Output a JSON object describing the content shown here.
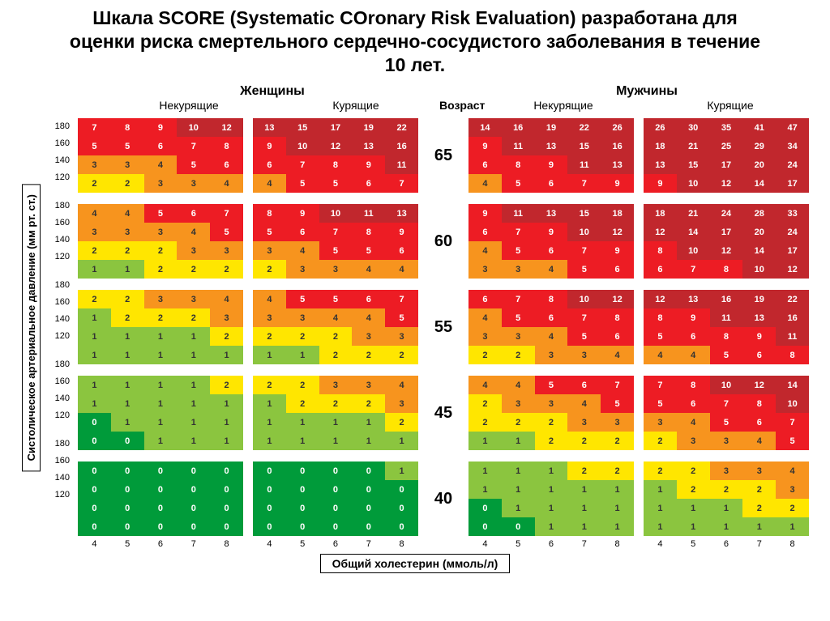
{
  "title": "Шкала SCORE (Systematic COronary Risk Evaluation) разработана для оценки риска смертельного сердечно-сосудистого заболевания в течение 10 лет.",
  "gender_women": "Женщины",
  "gender_men": "Мужчины",
  "sub_nonsmoker": "Некурящие",
  "sub_smoker": "Курящие",
  "sub_age": "Возраст",
  "y_axis": "Систолическое артериальное давление (мм рт. ст.)",
  "x_axis": "Общий холестерин (ммоль/л)",
  "bp_rows": [
    "180",
    "160",
    "140",
    "120"
  ],
  "chol_cols": [
    "4",
    "5",
    "6",
    "7",
    "8"
  ],
  "ages": [
    "65",
    "60",
    "55",
    "45",
    "40"
  ],
  "colors": {
    "darkgreen": "#009b3a",
    "green": "#8bc53f",
    "yellow": "#ffe600",
    "orange": "#f7941e",
    "red": "#ed1c24",
    "darkred": "#c1272d",
    "text_light": "#ffffff",
    "text_dark": "#333333"
  },
  "grids": {
    "65": {
      "wn": [
        [
          "7",
          "8",
          "9",
          "10",
          "12"
        ],
        [
          "5",
          "5",
          "6",
          "7",
          "8"
        ],
        [
          "3",
          "3",
          "4",
          "5",
          "6"
        ],
        [
          "2",
          "2",
          "3",
          "3",
          "4"
        ]
      ],
      "ws": [
        [
          "13",
          "15",
          "17",
          "19",
          "22"
        ],
        [
          "9",
          "10",
          "12",
          "13",
          "16"
        ],
        [
          "6",
          "7",
          "8",
          "9",
          "11"
        ],
        [
          "4",
          "5",
          "5",
          "6",
          "7"
        ]
      ],
      "mn": [
        [
          "14",
          "16",
          "19",
          "22",
          "26"
        ],
        [
          "9",
          "11",
          "13",
          "15",
          "16"
        ],
        [
          "6",
          "8",
          "9",
          "11",
          "13"
        ],
        [
          "4",
          "5",
          "6",
          "7",
          "9"
        ]
      ],
      "ms": [
        [
          "26",
          "30",
          "35",
          "41",
          "47"
        ],
        [
          "18",
          "21",
          "25",
          "29",
          "34"
        ],
        [
          "13",
          "15",
          "17",
          "20",
          "24"
        ],
        [
          "9",
          "10",
          "12",
          "14",
          "17"
        ]
      ]
    },
    "60": {
      "wn": [
        [
          "4",
          "4",
          "5",
          "6",
          "7"
        ],
        [
          "3",
          "3",
          "3",
          "4",
          "5"
        ],
        [
          "2",
          "2",
          "2",
          "3",
          "3"
        ],
        [
          "1",
          "1",
          "2",
          "2",
          "2"
        ]
      ],
      "ws": [
        [
          "8",
          "9",
          "10",
          "11",
          "13"
        ],
        [
          "5",
          "6",
          "7",
          "8",
          "9"
        ],
        [
          "3",
          "4",
          "5",
          "5",
          "6"
        ],
        [
          "2",
          "3",
          "3",
          "4",
          "4"
        ]
      ],
      "mn": [
        [
          "9",
          "11",
          "13",
          "15",
          "18"
        ],
        [
          "6",
          "7",
          "9",
          "10",
          "12"
        ],
        [
          "4",
          "5",
          "6",
          "7",
          "9"
        ],
        [
          "3",
          "3",
          "4",
          "5",
          "6"
        ]
      ],
      "ms": [
        [
          "18",
          "21",
          "24",
          "28",
          "33"
        ],
        [
          "12",
          "14",
          "17",
          "20",
          "24"
        ],
        [
          "8",
          "10",
          "12",
          "14",
          "17"
        ],
        [
          "6",
          "7",
          "8",
          "10",
          "12"
        ]
      ]
    },
    "55": {
      "wn": [
        [
          "2",
          "2",
          "3",
          "3",
          "4"
        ],
        [
          "1",
          "2",
          "2",
          "2",
          "3"
        ],
        [
          "1",
          "1",
          "1",
          "1",
          "2"
        ],
        [
          "1",
          "1",
          "1",
          "1",
          "1"
        ]
      ],
      "ws": [
        [
          "4",
          "5",
          "5",
          "6",
          "7"
        ],
        [
          "3",
          "3",
          "4",
          "4",
          "5"
        ],
        [
          "2",
          "2",
          "2",
          "3",
          "3"
        ],
        [
          "1",
          "1",
          "2",
          "2",
          "2"
        ]
      ],
      "mn": [
        [
          "6",
          "7",
          "8",
          "10",
          "12"
        ],
        [
          "4",
          "5",
          "6",
          "7",
          "8"
        ],
        [
          "3",
          "3",
          "4",
          "5",
          "6"
        ],
        [
          "2",
          "2",
          "3",
          "3",
          "4"
        ]
      ],
      "ms": [
        [
          "12",
          "13",
          "16",
          "19",
          "22"
        ],
        [
          "8",
          "9",
          "11",
          "13",
          "16"
        ],
        [
          "5",
          "6",
          "8",
          "9",
          "11"
        ],
        [
          "4",
          "4",
          "5",
          "6",
          "8"
        ]
      ]
    },
    "45": {
      "wn": [
        [
          "1",
          "1",
          "1",
          "1",
          "2"
        ],
        [
          "1",
          "1",
          "1",
          "1",
          "1"
        ],
        [
          "0",
          "1",
          "1",
          "1",
          "1"
        ],
        [
          "0",
          "0",
          "1",
          "1",
          "1"
        ]
      ],
      "ws": [
        [
          "2",
          "2",
          "3",
          "3",
          "4"
        ],
        [
          "1",
          "2",
          "2",
          "2",
          "3"
        ],
        [
          "1",
          "1",
          "1",
          "1",
          "2"
        ],
        [
          "1",
          "1",
          "1",
          "1",
          "1"
        ]
      ],
      "mn": [
        [
          "4",
          "4",
          "5",
          "6",
          "7"
        ],
        [
          "2",
          "3",
          "3",
          "4",
          "5"
        ],
        [
          "2",
          "2",
          "2",
          "3",
          "3"
        ],
        [
          "1",
          "1",
          "2",
          "2",
          "2"
        ]
      ],
      "ms": [
        [
          "7",
          "8",
          "10",
          "12",
          "14"
        ],
        [
          "5",
          "6",
          "7",
          "8",
          "10"
        ],
        [
          "3",
          "4",
          "5",
          "6",
          "7"
        ],
        [
          "2",
          "3",
          "3",
          "4",
          "5"
        ]
      ]
    },
    "40": {
      "wn": [
        [
          "0",
          "0",
          "0",
          "0",
          "0"
        ],
        [
          "0",
          "0",
          "0",
          "0",
          "0"
        ],
        [
          "0",
          "0",
          "0",
          "0",
          "0"
        ],
        [
          "0",
          "0",
          "0",
          "0",
          "0"
        ]
      ],
      "ws": [
        [
          "0",
          "0",
          "0",
          "0",
          "1"
        ],
        [
          "0",
          "0",
          "0",
          "0",
          "0"
        ],
        [
          "0",
          "0",
          "0",
          "0",
          "0"
        ],
        [
          "0",
          "0",
          "0",
          "0",
          "0"
        ]
      ],
      "mn": [
        [
          "1",
          "1",
          "1",
          "2",
          "2"
        ],
        [
          "1",
          "1",
          "1",
          "1",
          "1"
        ],
        [
          "0",
          "1",
          "1",
          "1",
          "1"
        ],
        [
          "0",
          "0",
          "1",
          "1",
          "1"
        ]
      ],
      "ms": [
        [
          "2",
          "2",
          "3",
          "3",
          "4"
        ],
        [
          "1",
          "2",
          "2",
          "2",
          "3"
        ],
        [
          "1",
          "1",
          "1",
          "2",
          "2"
        ],
        [
          "1",
          "1",
          "1",
          "1",
          "1"
        ]
      ]
    }
  }
}
